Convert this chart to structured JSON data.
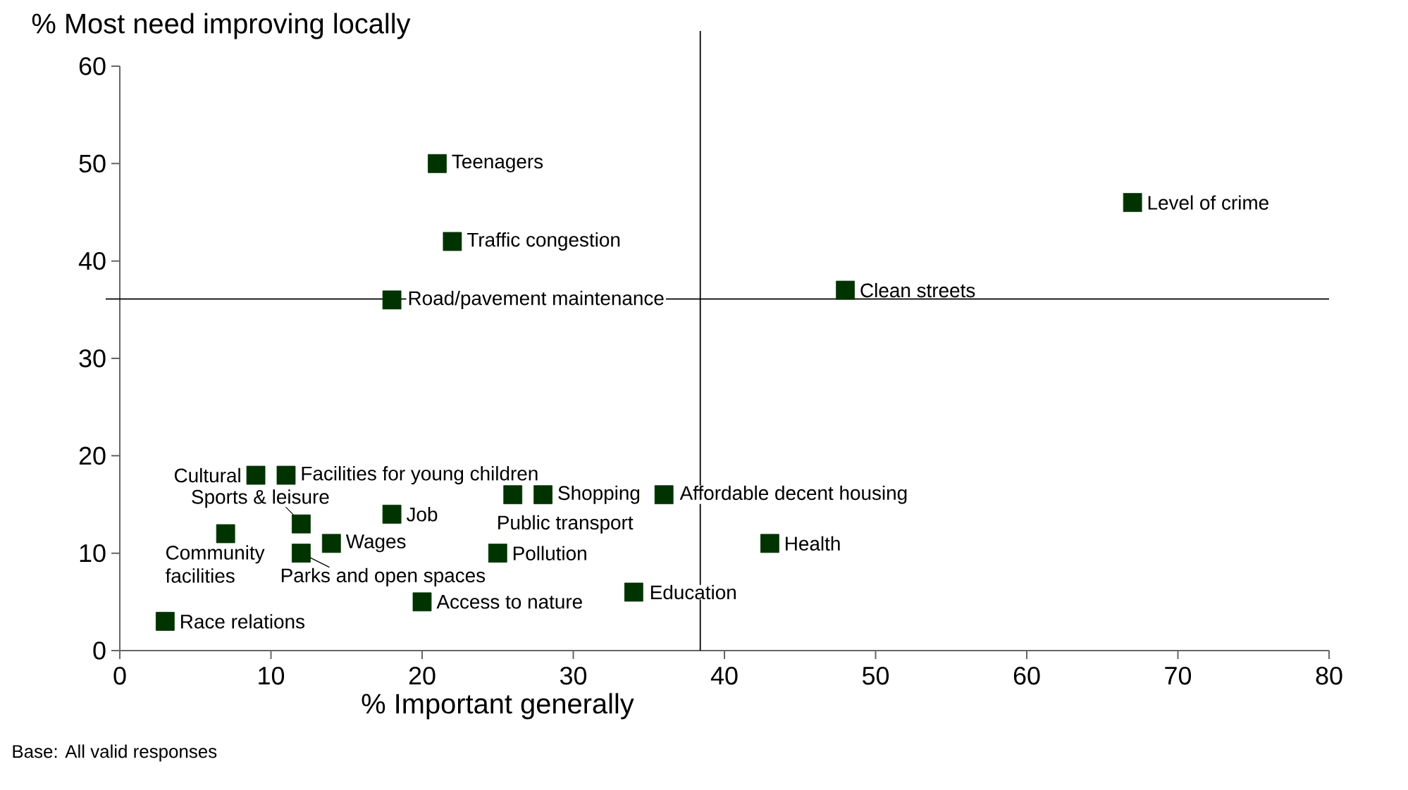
{
  "chart_data": {
    "type": "scatter",
    "xlabel": "% Important generally",
    "ylabel": "% Most need improving locally",
    "xlim": [
      0,
      80
    ],
    "xticks": [
      0,
      10,
      20,
      30,
      40,
      50,
      60,
      70,
      80
    ],
    "ylim": [
      0,
      60
    ],
    "yticks": [
      0,
      10,
      20,
      30,
      40,
      50,
      60
    ],
    "grid": false,
    "marker": "square",
    "series": [
      {
        "color": "#003300",
        "x": [
          21,
          22,
          18,
          67,
          48,
          9,
          11,
          12,
          18,
          7,
          14,
          12,
          25,
          20,
          3,
          28,
          26,
          36,
          34,
          43
        ],
        "values": [
          50,
          42,
          36,
          46,
          37,
          18,
          18,
          13,
          14,
          12,
          11,
          10,
          10,
          5,
          3,
          16,
          16,
          16,
          6,
          11
        ]
      }
    ],
    "ref_lines": [
      {
        "axis": "x",
        "value": 38.4,
        "color": "#000000"
      },
      {
        "axis": "y",
        "value": 36.1,
        "color": "#000000"
      }
    ],
    "annotations": [
      {
        "text": "Teenagers",
        "x": 21,
        "y": 50
      },
      {
        "text": "Traffic congestion",
        "x": 22,
        "y": 42
      },
      {
        "text": "Road/pavement maintenance",
        "x": 18,
        "y": 36
      },
      {
        "text": "Level of crime",
        "x": 67,
        "y": 46
      },
      {
        "text": "Clean streets",
        "x": 48,
        "y": 37
      },
      {
        "text": "Cultural",
        "x": 9,
        "y": 18
      },
      {
        "text": "Facilities for young children",
        "x": 11,
        "y": 18
      },
      {
        "text": "Sports & leisure",
        "x": 12,
        "y": 13
      },
      {
        "text": "Job",
        "x": 18,
        "y": 14
      },
      {
        "text": "Community facilities",
        "x": 7,
        "y": 12
      },
      {
        "text": "Wages",
        "x": 14,
        "y": 11
      },
      {
        "text": "Parks and open spaces",
        "x": 12,
        "y": 10
      },
      {
        "text": "Pollution",
        "x": 25,
        "y": 10
      },
      {
        "text": "Access to nature",
        "x": 20,
        "y": 5
      },
      {
        "text": "Race relations",
        "x": 3,
        "y": 3
      },
      {
        "text": "Shopping",
        "x": 28,
        "y": 16
      },
      {
        "text": "Public transport",
        "x": 26,
        "y": 16
      },
      {
        "text": "Affordable decent housing",
        "x": 36,
        "y": 16
      },
      {
        "text": "Education",
        "x": 34,
        "y": 6
      },
      {
        "text": "Health",
        "x": 43,
        "y": 11
      },
      "Base: All valid responses"
    ]
  }
}
